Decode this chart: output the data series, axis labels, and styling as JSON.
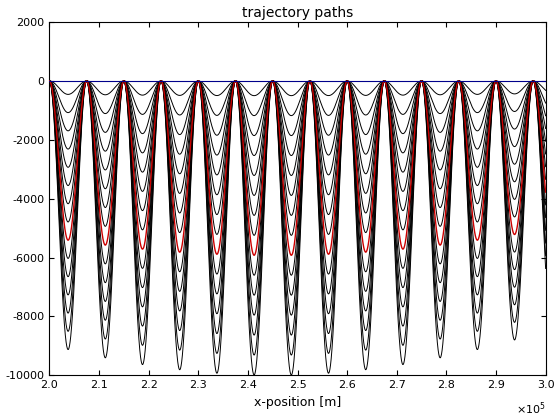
{
  "title": "trajectory paths",
  "xlabel": "x-position [m]",
  "xlim": [
    200000.0,
    300000.0
  ],
  "ylim": [
    -10000,
    2000
  ],
  "xticks": [
    2.0,
    2.1,
    2.2,
    2.3,
    2.4,
    2.5,
    2.6,
    2.7,
    2.8,
    2.9,
    3.0
  ],
  "yticks": [
    -10000,
    -8000,
    -6000,
    -4000,
    -2000,
    0,
    2000
  ],
  "n_trajectories": 15,
  "red_line_index": 8,
  "background_color": "#ffffff",
  "line_color_black": "#000000",
  "line_color_red": "#cc0000",
  "lam_short": 9000.0,
  "lam_long_factor": 50,
  "A_short": 2500.0,
  "A_long": 5000.0,
  "x_start": 200000.0
}
